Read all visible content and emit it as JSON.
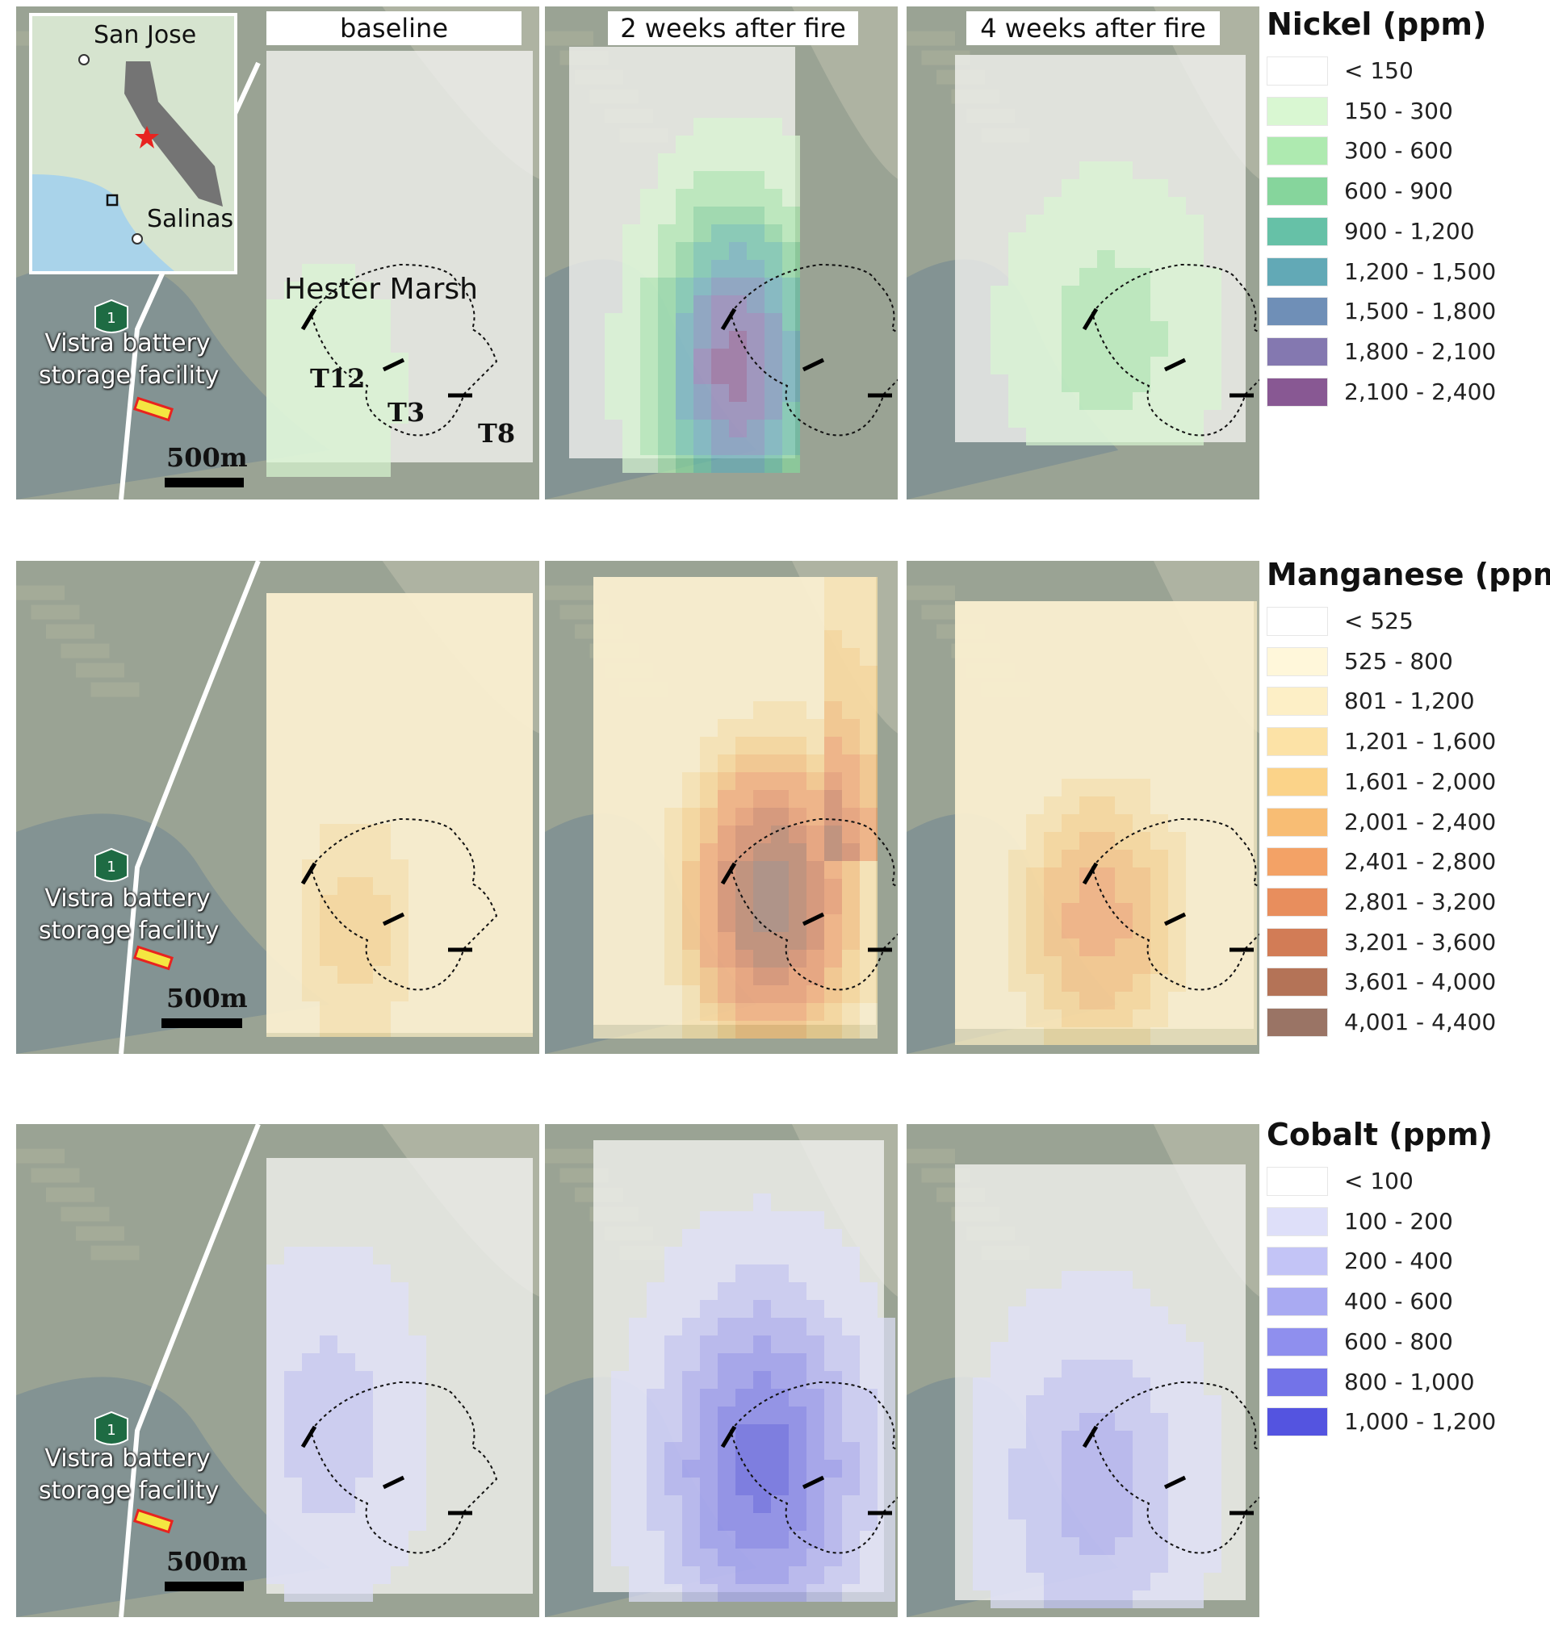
{
  "headers": {
    "baseline": "baseline",
    "two_weeks": "2 weeks after fire",
    "four_weeks": "4 weeks after fire"
  },
  "inset": {
    "city_north": "San Jose",
    "city_south": "Salinas"
  },
  "marsh_label": "Hester Marsh",
  "transects": [
    "T12",
    "T3",
    "T8"
  ],
  "facility_label": [
    "Vistra battery",
    "storage facility"
  ],
  "highway_number": "1",
  "scale_label": "500m",
  "colors": {
    "facility_outline": "#e8231f",
    "facility_fill": "#f4e641",
    "inset_star": "#e8231f",
    "highway_shield": "#1e6b43"
  },
  "legends": [
    {
      "title": "Nickel (ppm)",
      "classes": [
        {
          "label": "< 150",
          "color": "#ffffff"
        },
        {
          "label": "150 - 300",
          "color": "#d9f7d2"
        },
        {
          "label": "300 - 600",
          "color": "#aeeab0"
        },
        {
          "label": "600 - 900",
          "color": "#86d59c"
        },
        {
          "label": "900 - 1,200",
          "color": "#66c1a7"
        },
        {
          "label": "1,200 - 1,500",
          "color": "#62a9b6"
        },
        {
          "label": "1,500 - 1,800",
          "color": "#6f8fb7"
        },
        {
          "label": "1,800 - 2,100",
          "color": "#8478b0"
        },
        {
          "label": "2,100 - 2,400",
          "color": "#885893"
        }
      ]
    },
    {
      "title": "Manganese (ppm)",
      "classes": [
        {
          "label": "< 525",
          "color": "#ffffff"
        },
        {
          "label": "525 - 800",
          "color": "#fff7da"
        },
        {
          "label": "801 - 1,200",
          "color": "#fdefc6"
        },
        {
          "label": "1,201 - 1,600",
          "color": "#fce2a6"
        },
        {
          "label": "1,601 - 2,000",
          "color": "#fbd389"
        },
        {
          "label": "2,001 - 2,400",
          "color": "#f8bd74"
        },
        {
          "label": "2,401 - 2,800",
          "color": "#f3a266"
        },
        {
          "label": "2,801 - 3,200",
          "color": "#e88e5d"
        },
        {
          "label": "3,201 - 3,600",
          "color": "#d27c56"
        },
        {
          "label": "3,601 - 4,000",
          "color": "#b47357"
        },
        {
          "label": "4,001 - 4,400",
          "color": "#9a7465"
        }
      ]
    },
    {
      "title": "Cobalt (ppm)",
      "classes": [
        {
          "label": "< 100",
          "color": "#ffffff"
        },
        {
          "label": "100 - 200",
          "color": "#dedff9"
        },
        {
          "label": "200 - 400",
          "color": "#c3c4f6"
        },
        {
          "label": "400 - 600",
          "color": "#a9aaf2"
        },
        {
          "label": "600 - 800",
          "color": "#8f8fee"
        },
        {
          "label": "800 - 1,000",
          "color": "#7373e8"
        },
        {
          "label": "1,000 - 1,200",
          "color": "#5454e0"
        }
      ]
    }
  ]
}
